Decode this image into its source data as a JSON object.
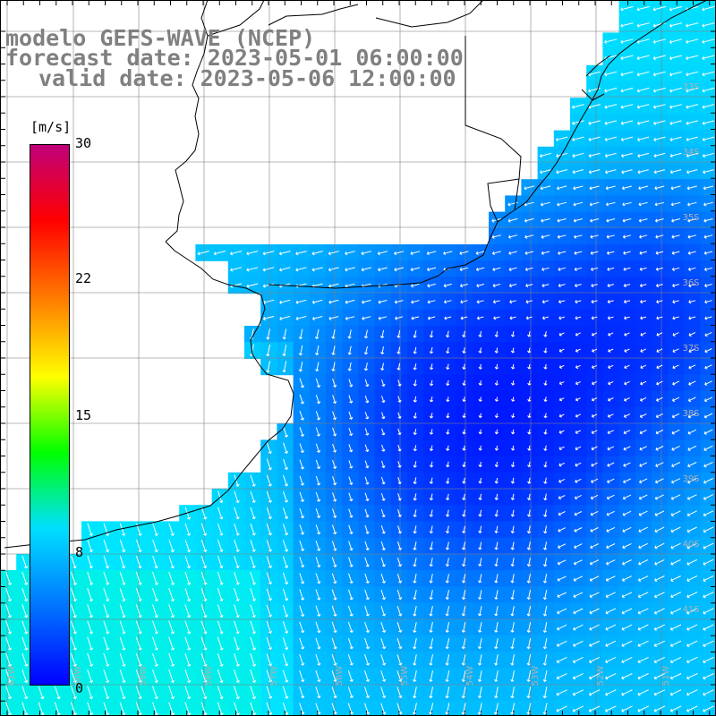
{
  "title": {
    "line1": "modelo GEFS-WAVE (NCEP)",
    "line2": "forecast date: 2023-05-01 06:00:00",
    "line3": "valid date: 2023-05-06 12:00:00"
  },
  "colorbar": {
    "units": "[m/s]",
    "ticks": [
      "30",
      "22",
      "15",
      "8",
      "0"
    ],
    "tick_values": [
      30,
      22,
      15,
      8,
      0
    ],
    "stops": [
      "#0000ff",
      "#0070ff",
      "#00e0ff",
      "#00ff00",
      "#ffff00",
      "#ff8000",
      "#ff0000",
      "#c0007a"
    ]
  },
  "map": {
    "lat_labels": [
      "33S",
      "34S",
      "35S",
      "36S",
      "37S",
      "38S",
      "39S",
      "40S",
      "41S"
    ],
    "lon_labels": [
      "61W",
      "60W",
      "59W",
      "58W",
      "57W",
      "56W",
      "55W",
      "54W",
      "53W",
      "52W",
      "51W"
    ],
    "land_color": "#ffffff",
    "grid_color": "#808080",
    "arrow_color": "#ffffff"
  }
}
